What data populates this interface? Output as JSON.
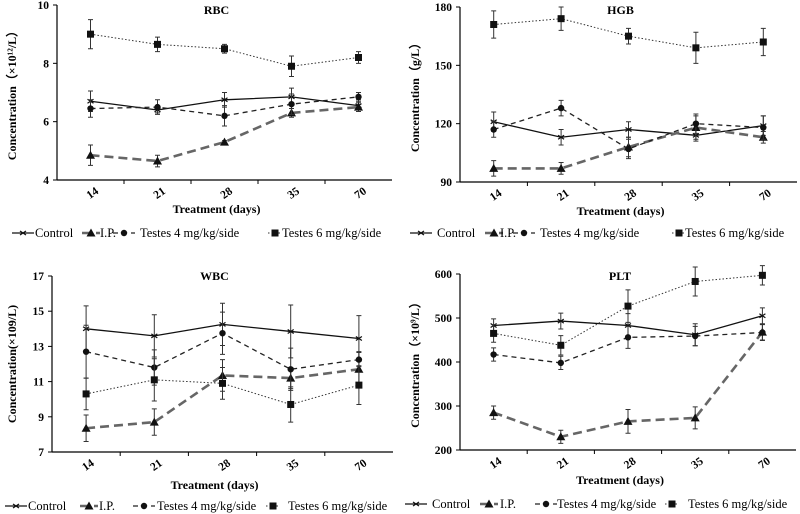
{
  "chart_data": [
    {
      "type": "line",
      "title": "RBC",
      "xlabel": "Treatment (days)",
      "ylabel": "Concentration（×10¹²/L）",
      "categories": [
        "14",
        "21",
        "28",
        "35",
        "70"
      ],
      "ylim": [
        4,
        10
      ],
      "yticks": [
        "4",
        "6",
        "8",
        "10"
      ],
      "series": [
        {
          "name": "Control",
          "values": [
            6.7,
            6.4,
            6.75,
            6.85,
            6.55
          ],
          "errors": [
            0.35,
            0.1,
            0.25,
            0.3,
            0.2
          ]
        },
        {
          "name": "I.P.",
          "values": [
            4.85,
            4.65,
            5.3,
            6.3,
            6.5
          ],
          "errors": [
            0.35,
            0.2,
            0.05,
            0.15,
            0.15
          ]
        },
        {
          "name": "Testes 4 mg/kg/side",
          "values": [
            6.45,
            6.5,
            6.2,
            6.6,
            6.85
          ],
          "errors": [
            0.3,
            0.25,
            0.35,
            0.35,
            0.15
          ]
        },
        {
          "name": "Testes 6 mg/kg/side",
          "values": [
            9.0,
            8.65,
            8.5,
            7.9,
            8.2
          ],
          "errors": [
            0.5,
            0.25,
            0.15,
            0.35,
            0.2
          ]
        }
      ],
      "legend": "bottom"
    },
    {
      "type": "line",
      "title": "HGB",
      "xlabel": "Treatment (days)",
      "ylabel": "Concentration（g/L）",
      "categories": [
        "14",
        "21",
        "28",
        "35",
        "70"
      ],
      "ylim": [
        90,
        180
      ],
      "yticks": [
        "90",
        "120",
        "150",
        "180"
      ],
      "series": [
        {
          "name": "Control",
          "values": [
            121,
            113,
            117,
            114,
            119
          ],
          "errors": [
            5,
            4,
            4,
            3,
            5
          ]
        },
        {
          "name": "I.P.",
          "values": [
            97,
            97,
            108,
            118,
            113
          ],
          "errors": [
            4,
            3,
            5,
            6,
            3
          ]
        },
        {
          "name": "Testes 4 mg/kg/side",
          "values": [
            117,
            128,
            107,
            120,
            118
          ],
          "errors": [
            4,
            4,
            5,
            5,
            6
          ]
        },
        {
          "name": "Testes 6 mg/kg/side",
          "values": [
            171,
            174,
            165,
            159,
            162
          ],
          "errors": [
            7,
            6,
            4,
            8,
            7
          ]
        }
      ],
      "legend": "bottom"
    },
    {
      "type": "line",
      "title": "WBC",
      "xlabel": "Treatment (days)",
      "ylabel": "Concentration(×109/L)",
      "categories": [
        "14",
        "21",
        "28",
        "35",
        "70"
      ],
      "ylim": [
        7,
        17
      ],
      "yticks": [
        "7",
        "9",
        "11",
        "13",
        "15",
        "17"
      ],
      "series": [
        {
          "name": "Control",
          "values": [
            14.0,
            13.6,
            14.25,
            13.85,
            13.45
          ],
          "errors": [
            1.3,
            1.2,
            1.2,
            1.5,
            1.3
          ]
        },
        {
          "name": "I.P.",
          "values": [
            8.35,
            8.7,
            11.35,
            11.2,
            11.7
          ],
          "errors": [
            0.75,
            0.75,
            0.9,
            0.6,
            1.0
          ]
        },
        {
          "name": "Testes 4 mg/kg/side",
          "values": [
            12.7,
            11.8,
            13.75,
            11.7,
            12.25
          ],
          "errors": [
            1.5,
            1.0,
            1.2,
            1.2,
            0.4
          ]
        },
        {
          "name": "Testes 6 mg/kg/side",
          "values": [
            10.3,
            11.1,
            10.9,
            9.7,
            10.8
          ],
          "errors": [
            0.9,
            1.2,
            0.9,
            1.0,
            1.1
          ]
        }
      ],
      "legend": "bottom"
    },
    {
      "type": "line",
      "title": "PLT",
      "xlabel": "Treatment (days)",
      "ylabel": "Concentration（×10⁹/L）",
      "categories": [
        "14",
        "21",
        "28",
        "35",
        "70"
      ],
      "ylim": [
        200,
        600
      ],
      "yticks": [
        "200",
        "300",
        "400",
        "500",
        "600"
      ],
      "series": [
        {
          "name": "Control",
          "values": [
            483,
            493,
            483,
            462,
            505
          ],
          "errors": [
            15,
            18,
            27,
            25,
            18
          ]
        },
        {
          "name": "I.P.",
          "values": [
            285,
            230,
            265,
            273,
            468
          ],
          "errors": [
            15,
            15,
            27,
            25,
            18
          ]
        },
        {
          "name": "Testes 4 mg/kg/side",
          "values": [
            417,
            398,
            456,
            459,
            467
          ],
          "errors": [
            15,
            15,
            25,
            22,
            18
          ]
        },
        {
          "name": "Testes 6 mg/kg/side",
          "values": [
            465,
            438,
            527,
            583,
            597
          ],
          "errors": [
            20,
            22,
            37,
            33,
            22
          ]
        }
      ],
      "legend": "bottom"
    }
  ]
}
